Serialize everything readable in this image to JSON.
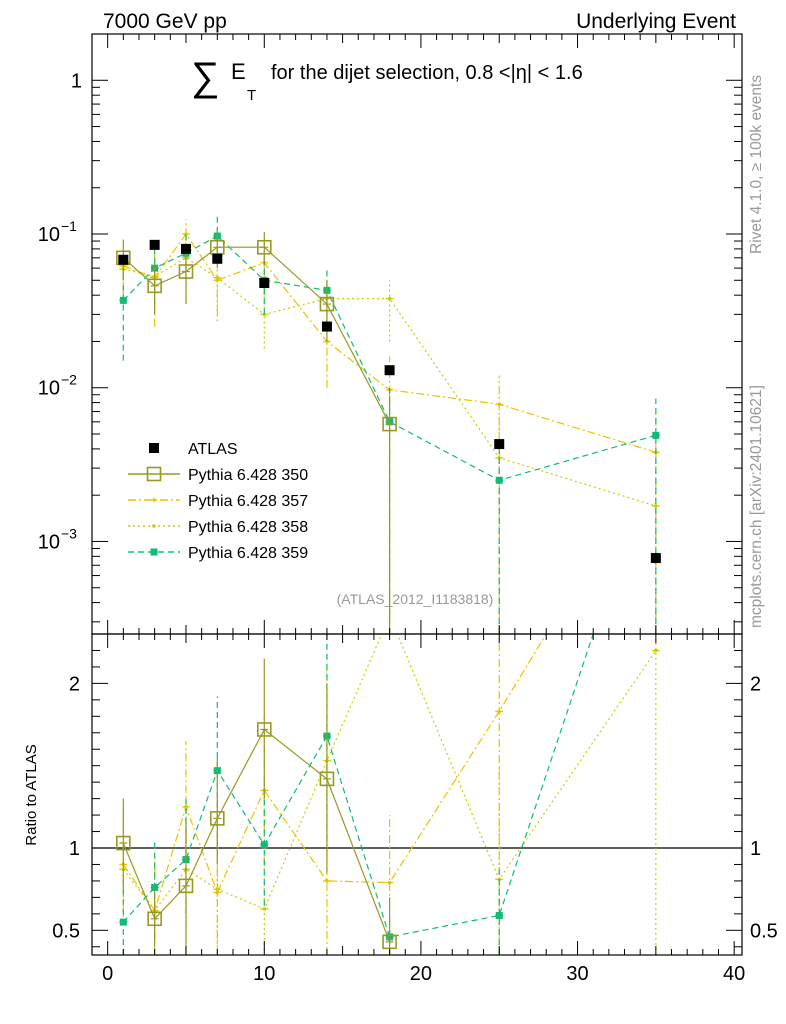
{
  "header": {
    "left": "7000 GeV pp",
    "right": "Underlying Event"
  },
  "side": {
    "top": "Rivet 4.1.0, ≥ 100k events",
    "bottom": "mcplots.cern.ch [arXiv:2401.10621]"
  },
  "colors": {
    "atlas": "#000000",
    "p350": "#999922",
    "p357": "#e8c400",
    "p358": "#cccc00",
    "p359": "#11bb77",
    "axis": "#000000",
    "watermark": "#999999"
  },
  "chart_data": [
    {
      "type": "line",
      "panel": "main",
      "title_symbol": "∑",
      "title_var": "E",
      "title_sub": "T",
      "title_text": "for the dijet selection, 0.8 <|η| < 1.6",
      "watermark": "(ATLAS_2012_I1183818)",
      "yscale": "log",
      "xlim": [
        -1,
        40.5
      ],
      "ylim": [
        0.00025,
        2.0
      ],
      "yticks": [
        {
          "v": 1,
          "label": "1"
        },
        {
          "v": 0.1,
          "label": "10",
          "exp": "−1"
        },
        {
          "v": 0.01,
          "label": "10",
          "exp": "−2"
        },
        {
          "v": 0.001,
          "label": "10",
          "exp": "−3"
        }
      ],
      "legend": [
        {
          "key": "atlas",
          "label": "ATLAS"
        },
        {
          "key": "p350",
          "label": "Pythia 6.428 350"
        },
        {
          "key": "p357",
          "label": "Pythia 6.428 357"
        },
        {
          "key": "p358",
          "label": "Pythia 6.428 358"
        },
        {
          "key": "p359",
          "label": "Pythia 6.428 359"
        }
      ],
      "series": [
        {
          "key": "atlas",
          "name": "ATLAS",
          "marker": "square-filled",
          "x": [
            1,
            3,
            5,
            7,
            10,
            14,
            18,
            25,
            35
          ],
          "y": [
            0.068,
            0.085,
            0.08,
            0.069,
            0.048,
            0.025,
            0.013,
            0.0043,
            0.00078
          ]
        },
        {
          "key": "p350",
          "name": "Pythia 6.428 350",
          "marker": "square-open",
          "dash": "",
          "x": [
            1,
            3,
            5,
            7,
            10,
            14,
            18
          ],
          "y": [
            0.07,
            0.046,
            0.057,
            0.082,
            0.082,
            0.035,
            0.0058
          ],
          "lo": [
            0.05,
            0.03,
            0.035,
            0.06,
            0.062,
            0.02,
            0.00025
          ],
          "hi": [
            0.092,
            0.065,
            0.085,
            0.108,
            0.103,
            0.05,
            0.009
          ]
        },
        {
          "key": "p357",
          "name": "Pythia 6.428 357",
          "marker": "dot",
          "dash": "8,3,2,3",
          "x": [
            1,
            3,
            5,
            7,
            10,
            14,
            18,
            25,
            35
          ],
          "y": [
            0.062,
            0.052,
            0.1,
            0.05,
            0.065,
            0.02,
            0.0097,
            0.0078,
            0.0038
          ],
          "lo": [
            0.04,
            0.025,
            0.06,
            0.03,
            0.04,
            0.01,
            0.00025,
            0.00025,
            0.00025
          ],
          "hi": [
            0.085,
            0.08,
            0.125,
            0.075,
            0.092,
            0.035,
            0.016,
            0.012,
            0.007
          ]
        },
        {
          "key": "p358",
          "name": "Pythia 6.428 358",
          "marker": "dot",
          "dash": "2,3",
          "x": [
            1,
            3,
            5,
            7,
            10,
            14,
            18,
            25,
            35
          ],
          "y": [
            0.059,
            0.053,
            0.07,
            0.052,
            0.03,
            0.038,
            0.038,
            0.0035,
            0.0017
          ],
          "lo": [
            0.035,
            0.03,
            0.035,
            0.027,
            0.018,
            0.025,
            0.02,
            0.00025,
            0.00025
          ],
          "hi": [
            0.08,
            0.075,
            0.1,
            0.09,
            0.045,
            0.052,
            0.05,
            0.0065,
            0.005
          ]
        },
        {
          "key": "p359",
          "name": "Pythia 6.428 359",
          "marker": "square-small",
          "dash": "6,4",
          "x": [
            1,
            3,
            5,
            7,
            10,
            14,
            18,
            25,
            35
          ],
          "y": [
            0.037,
            0.06,
            0.075,
            0.097,
            0.05,
            0.043,
            0.006,
            0.0025,
            0.0049
          ],
          "lo": [
            0.015,
            0.035,
            0.05,
            0.065,
            0.03,
            0.025,
            0.00025,
            0.00025,
            0.00025
          ],
          "hi": [
            0.055,
            0.085,
            0.105,
            0.13,
            0.068,
            0.06,
            0.01,
            0.0045,
            0.0085
          ]
        }
      ]
    },
    {
      "type": "line",
      "panel": "ratio",
      "ylabel": "Ratio to ATLAS",
      "xlim": [
        -1,
        40.5
      ],
      "ylim": [
        0.35,
        2.3
      ],
      "reference_line": 1,
      "xticks": [
        0,
        10,
        20,
        30,
        40
      ],
      "yticks": [
        {
          "v": 0.5,
          "label": "0.5"
        },
        {
          "v": 1,
          "label": "1"
        },
        {
          "v": 2,
          "label": "2"
        }
      ],
      "series": [
        {
          "key": "p350",
          "marker": "square-open",
          "dash": "",
          "x": [
            1,
            3,
            5,
            7,
            10,
            14,
            18
          ],
          "y": [
            1.03,
            0.57,
            0.77,
            1.18,
            1.72,
            1.42,
            0.43
          ],
          "lo": [
            0.75,
            0.4,
            0.35,
            0.9,
            1.3,
            0.85,
            0.35
          ],
          "hi": [
            1.3,
            0.75,
            1.15,
            1.55,
            2.15,
            2.0,
            0.7
          ]
        },
        {
          "key": "p357",
          "marker": "dot",
          "dash": "8,3,2,3",
          "x": [
            1,
            3,
            5,
            7,
            10,
            14,
            18,
            25,
            28
          ],
          "y": [
            0.9,
            0.62,
            1.25,
            0.73,
            1.35,
            0.8,
            0.79,
            1.83,
            2.3
          ],
          "lo": [
            0.6,
            0.35,
            0.75,
            0.35,
            0.9,
            0.35,
            0.35,
            0.35,
            null
          ],
          "hi": [
            1.25,
            0.95,
            1.65,
            1.1,
            1.8,
            1.35,
            1.2,
            2.3,
            null
          ]
        },
        {
          "key": "p358",
          "marker": "dot",
          "dash": "2,3",
          "x": [
            1,
            3,
            5,
            7,
            10,
            14,
            17.5,
            18.5,
            25,
            35
          ],
          "y": [
            0.87,
            0.62,
            0.87,
            0.75,
            0.63,
            1.53,
            2.3,
            2.3,
            0.81,
            2.2
          ],
          "lo": [
            0.55,
            0.35,
            0.45,
            0.4,
            0.38,
            0.95,
            null,
            null,
            0.35,
            0.35
          ],
          "hi": [
            1.2,
            0.9,
            1.25,
            1.3,
            0.95,
            2.1,
            null,
            null,
            1.5,
            2.3
          ]
        },
        {
          "key": "p359",
          "marker": "square-small",
          "dash": "6,4",
          "x": [
            1,
            3,
            5,
            7,
            10,
            14,
            18,
            25,
            31
          ],
          "y": [
            0.55,
            0.76,
            0.93,
            1.47,
            1.02,
            1.68,
            0.46,
            0.59,
            2.3
          ],
          "lo": [
            0.35,
            0.45,
            0.6,
            1.0,
            0.65,
            1.05,
            0.35,
            0.35,
            null
          ],
          "hi": [
            0.8,
            1.05,
            1.3,
            1.92,
            1.4,
            2.3,
            0.6,
            0.9,
            null
          ]
        }
      ]
    }
  ]
}
